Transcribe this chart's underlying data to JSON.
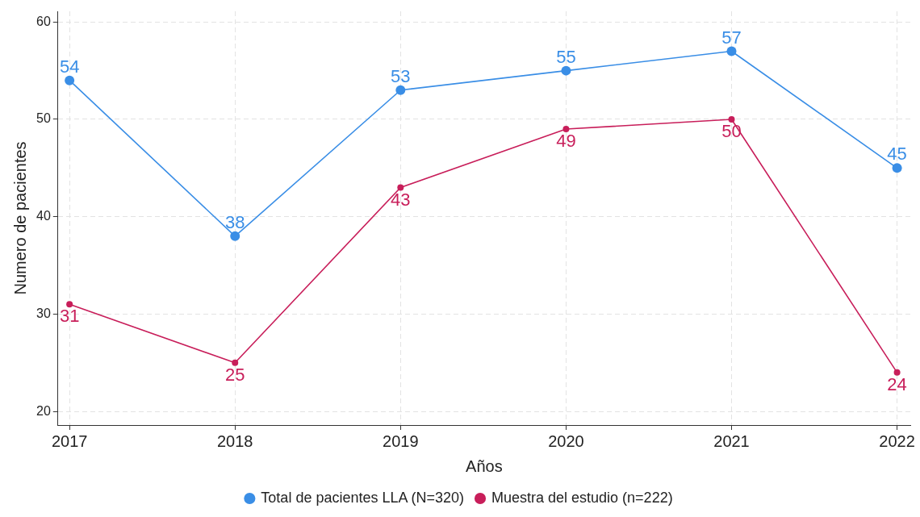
{
  "chart_data": {
    "type": "line",
    "xlabel": "Años",
    "ylabel": "Numero de pacientes",
    "x": [
      2017,
      2018,
      2019,
      2020,
      2021,
      2022
    ],
    "xlim": [
      2016.93,
      2022.08
    ],
    "xticks": [
      2017,
      2018,
      2019,
      2020,
      2021,
      2022
    ],
    "ylim": [
      18.6,
      61.1
    ],
    "yticks": [
      20,
      30,
      40,
      50,
      60
    ],
    "series": [
      {
        "name": "Total de pacientes LLA (N=320)",
        "color": "#3a8ee6",
        "values": [
          54,
          38,
          53,
          55,
          57,
          45
        ]
      },
      {
        "name": "Muestra del estudio (n=222)",
        "color": "#c81e5a",
        "values": [
          31,
          25,
          43,
          49,
          50,
          24
        ]
      }
    ],
    "grid": true,
    "legend": "bottom",
    "marker": "circle",
    "line_style": "solid",
    "data_labels": true
  }
}
